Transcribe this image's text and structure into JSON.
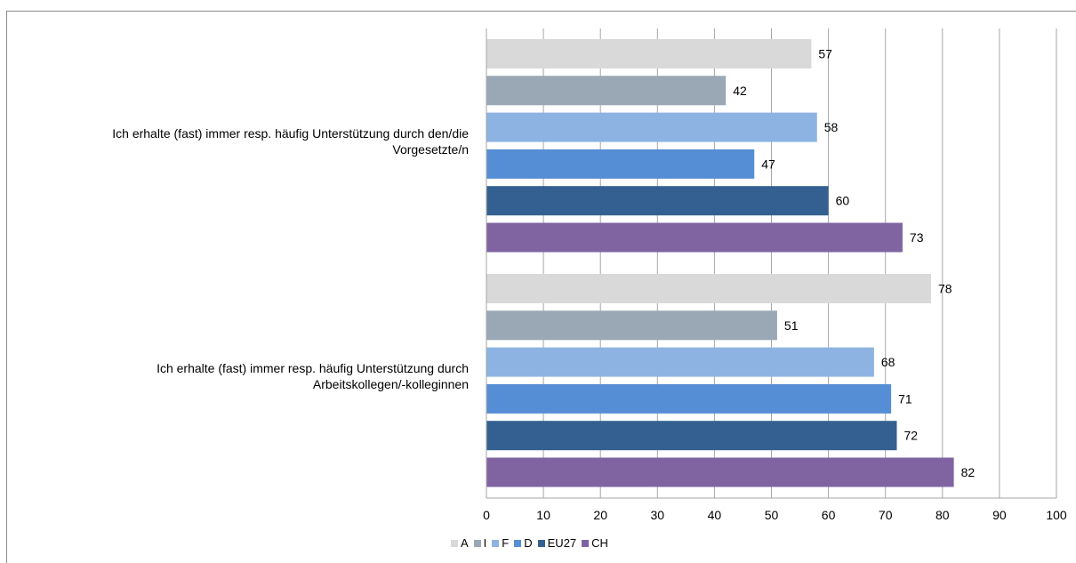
{
  "chart_data": {
    "type": "bar",
    "orientation": "horizontal",
    "categories": [
      "Ich erhalte (fast) immer resp. häufig Unterstützung durch den/die Vorgesetzte/n",
      "Ich erhalte (fast) immer resp. häufig Unterstützung durch Arbeitskollegen/-kolleginnen"
    ],
    "category_lines": [
      [
        "Ich erhalte (fast) immer resp. häufig Unterstützung durch den/die",
        "Vorgesetzte/n"
      ],
      [
        "Ich erhalte (fast) immer resp. häufig Unterstützung durch",
        "Arbeitskollegen/-kolleginnen"
      ]
    ],
    "series": [
      {
        "name": "A",
        "color": "#d9d9d9",
        "values": [
          57,
          78
        ]
      },
      {
        "name": "I",
        "color": "#9aa8b5",
        "values": [
          42,
          51
        ]
      },
      {
        "name": "F",
        "color": "#8db3e2",
        "values": [
          58,
          68
        ]
      },
      {
        "name": "D",
        "color": "#558ed5",
        "values": [
          47,
          71
        ]
      },
      {
        "name": "EU27",
        "color": "#346091",
        "values": [
          60,
          72
        ]
      },
      {
        "name": "CH",
        "color": "#8064a2",
        "values": [
          73,
          82
        ]
      }
    ],
    "xlim": [
      0,
      100
    ],
    "xticks": [
      0,
      10,
      20,
      30,
      40,
      50,
      60,
      70,
      80,
      90,
      100
    ],
    "grid": true,
    "data_labels": true,
    "legend_position": "bottom"
  }
}
